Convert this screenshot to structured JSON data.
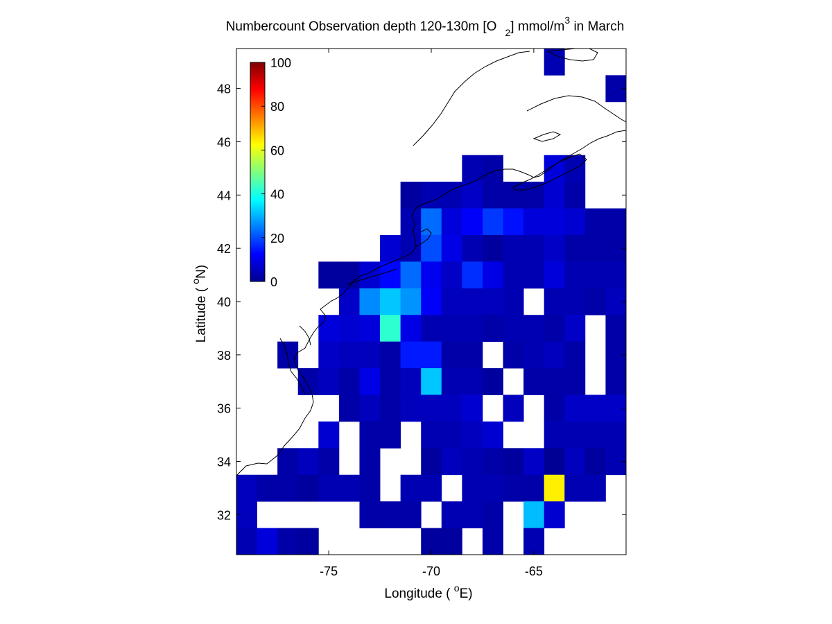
{
  "chart_data": {
    "type": "heatmap",
    "title_parts": {
      "prefix": "Numbercount Observation depth 120-130m [O",
      "subscript": "2",
      "middle": "] mmol/m",
      "superscript": "3",
      "suffix": " in March"
    },
    "xlabel_parts": {
      "prefix": "Longitude ( ",
      "superscript": "o",
      "suffix": "E)"
    },
    "ylabel_parts": {
      "prefix": "Latitude ( ",
      "superscript": "o",
      "suffix": "N)"
    },
    "xlim": [
      -79.5,
      -60.5
    ],
    "ylim": [
      30.5,
      49.5
    ],
    "xticks": [
      -75,
      -70,
      -65
    ],
    "xtick_labels": [
      "-75",
      "-70",
      "-65"
    ],
    "yticks": [
      32,
      34,
      36,
      38,
      40,
      42,
      44,
      46,
      48
    ],
    "ytick_labels": [
      "32",
      "34",
      "36",
      "38",
      "40",
      "42",
      "44",
      "46",
      "48"
    ],
    "colorbar": {
      "colormap": "jet",
      "range": [
        0,
        100
      ],
      "ticks": [
        0,
        20,
        40,
        60,
        80,
        100
      ],
      "tick_labels": [
        "0",
        "20",
        "40",
        "60",
        "80",
        "100"
      ],
      "location": "top-left inside plot"
    },
    "grid": false,
    "cell_size_deg": 1,
    "x_centers": [
      -79,
      -78,
      -77,
      -76,
      -75,
      -74,
      -73,
      -72,
      -71,
      -70,
      -69,
      -68,
      -67,
      -66,
      -65,
      -64,
      -63,
      -62,
      -61
    ],
    "y_centers": [
      49,
      48,
      47,
      46,
      45,
      44,
      43,
      42,
      41,
      40,
      39,
      38,
      37,
      36,
      35,
      34,
      33,
      32,
      31
    ],
    "values": [
      [
        null,
        null,
        null,
        null,
        null,
        null,
        null,
        null,
        null,
        null,
        null,
        null,
        null,
        null,
        null,
        5,
        null,
        null,
        null
      ],
      [
        null,
        null,
        null,
        null,
        null,
        null,
        null,
        null,
        null,
        null,
        null,
        null,
        null,
        null,
        null,
        null,
        null,
        null,
        4
      ],
      [
        null,
        null,
        null,
        null,
        null,
        null,
        null,
        null,
        null,
        null,
        null,
        null,
        null,
        null,
        null,
        null,
        null,
        null,
        null
      ],
      [
        null,
        null,
        null,
        null,
        null,
        null,
        null,
        null,
        null,
        null,
        null,
        null,
        null,
        null,
        null,
        null,
        null,
        null,
        null
      ],
      [
        null,
        null,
        null,
        null,
        null,
        null,
        null,
        null,
        null,
        null,
        null,
        5,
        4,
        null,
        null,
        9,
        5,
        null,
        null
      ],
      [
        null,
        null,
        null,
        null,
        null,
        null,
        null,
        null,
        3,
        5,
        5,
        7,
        4,
        4,
        4,
        8,
        4,
        null,
        null
      ],
      [
        null,
        null,
        null,
        null,
        null,
        null,
        null,
        null,
        5,
        23,
        9,
        12,
        18,
        14,
        9,
        9,
        8,
        4,
        4
      ],
      [
        null,
        null,
        null,
        null,
        null,
        null,
        null,
        8,
        5,
        20,
        10,
        5,
        3,
        5,
        5,
        7,
        4,
        4,
        4
      ],
      [
        null,
        null,
        null,
        null,
        3,
        3,
        8,
        13,
        23,
        11,
        7,
        17,
        10,
        5,
        5,
        9,
        5,
        5,
        5
      ],
      [
        null,
        null,
        null,
        null,
        null,
        7,
        26,
        32,
        27,
        12,
        6,
        6,
        6,
        5,
        null,
        5,
        5,
        4,
        6
      ],
      [
        null,
        null,
        null,
        null,
        9,
        8,
        9,
        42,
        10,
        5,
        5,
        5,
        4,
        5,
        5,
        4,
        7,
        null,
        4
      ],
      [
        null,
        null,
        4,
        null,
        7,
        6,
        6,
        4,
        15,
        15,
        4,
        4,
        null,
        4,
        5,
        6,
        4,
        null,
        4
      ],
      [
        null,
        null,
        null,
        4,
        6,
        4,
        10,
        4,
        6,
        32,
        5,
        5,
        3,
        null,
        4,
        4,
        4,
        null,
        4
      ],
      [
        null,
        null,
        null,
        null,
        null,
        4,
        6,
        4,
        6,
        6,
        6,
        8,
        null,
        6,
        null,
        4,
        7,
        7,
        7
      ],
      [
        null,
        null,
        null,
        null,
        8,
        null,
        4,
        4,
        null,
        5,
        5,
        6,
        8,
        null,
        null,
        5,
        5,
        5,
        5
      ],
      [
        null,
        null,
        4,
        6,
        4,
        null,
        4,
        null,
        null,
        3,
        6,
        5,
        4,
        3,
        7,
        2,
        6,
        3,
        5
      ],
      [
        6,
        4,
        4,
        3,
        5,
        5,
        4,
        null,
        5,
        5,
        null,
        5,
        5,
        4,
        4,
        64,
        5,
        5,
        null
      ],
      [
        6,
        null,
        null,
        null,
        null,
        null,
        4,
        4,
        4,
        null,
        5,
        5,
        4,
        null,
        31,
        8,
        null,
        null,
        null
      ],
      [
        5,
        9,
        4,
        3,
        null,
        null,
        null,
        null,
        null,
        3,
        3,
        null,
        4,
        null,
        5,
        null,
        null,
        null,
        null
      ]
    ]
  },
  "coastline_color": "#000000"
}
